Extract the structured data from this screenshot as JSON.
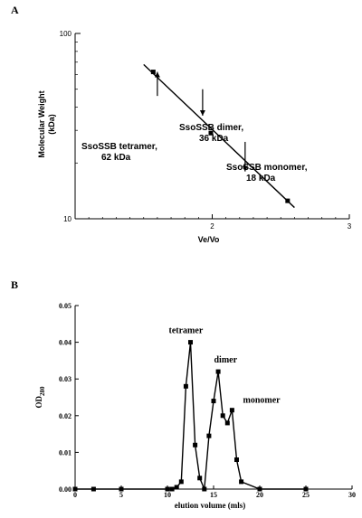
{
  "chart_data": [
    {
      "panel": "A",
      "type": "scatter",
      "xlabel": "Ve/Vo",
      "ylabel": "Molecular Weight (kDa)",
      "ylabel_lines": [
        "Molecular Weight",
        "(kDa)"
      ],
      "xlim": [
        1,
        3
      ],
      "ylim": [
        10,
        100
      ],
      "yscale": "log",
      "xticks": [
        "",
        "2",
        "3"
      ],
      "yticks": [
        "10",
        "100"
      ],
      "points": [
        {
          "x": 1.57,
          "y": 62
        },
        {
          "x": 1.99,
          "y": 29
        },
        {
          "x": 2.55,
          "y": 12.5
        }
      ],
      "fit_line": [
        {
          "x": 1.5,
          "y": 68
        },
        {
          "x": 2.6,
          "y": 11.5
        }
      ],
      "annotations": [
        {
          "lines": [
            "SsoSSB tetramer,",
            "62 kDa"
          ],
          "arrow_x": 1.6,
          "arrow_y_from": 46,
          "arrow_y_to": 62
        },
        {
          "lines": [
            "SsoSSB dimer,",
            "36 kDa"
          ],
          "arrow_x": 1.93,
          "arrow_y_from": 50,
          "arrow_y_to": 36
        },
        {
          "lines": [
            "SsoSSB monomer,",
            "18 kDa"
          ],
          "arrow_x": 2.24,
          "arrow_y_from": 26,
          "arrow_y_to": 18
        }
      ],
      "grid": false,
      "legend": "none"
    },
    {
      "panel": "B",
      "type": "line",
      "xlabel": "elution volume (mls)",
      "ylabel": "OD280",
      "ylabel_main": "OD",
      "ylabel_sub": "280",
      "xlim": [
        0,
        30
      ],
      "ylim": [
        0,
        0.05
      ],
      "xticks": [
        "0",
        "5",
        "10",
        "15",
        "20",
        "25",
        "30"
      ],
      "yticks": [
        "0.00",
        "0.01",
        "0.02",
        "0.03",
        "0.04",
        "0.05"
      ],
      "x": [
        0,
        2,
        5,
        10,
        10.5,
        11,
        11.5,
        12,
        12.5,
        13,
        13.5,
        14,
        14.5,
        15,
        15.5,
        16,
        16.5,
        17,
        17.5,
        18,
        20,
        25
      ],
      "y": [
        0,
        0,
        0,
        0,
        0,
        0.0005,
        0.002,
        0.028,
        0.04,
        0.012,
        0.003,
        0,
        0.0145,
        0.024,
        0.032,
        0.02,
        0.018,
        0.0215,
        0.008,
        0.002,
        0,
        0
      ],
      "annotations": [
        {
          "text": "tetramer",
          "x": 12,
          "y": 0.0425
        },
        {
          "text": "dimer",
          "x": 16.3,
          "y": 0.0345
        },
        {
          "text": "monomer",
          "x": 20.2,
          "y": 0.0235
        }
      ],
      "grid": false,
      "legend": "none"
    }
  ],
  "labels": {
    "panel_a": "A",
    "panel_b": "B"
  }
}
